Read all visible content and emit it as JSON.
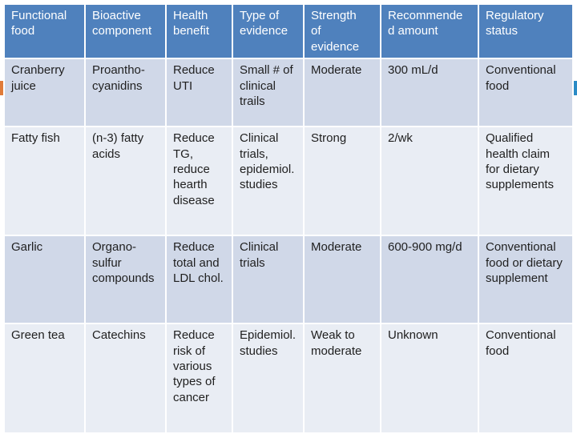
{
  "colors": {
    "header_bg": "#4f81bd",
    "row_odd_bg": "#d0d8e8",
    "row_even_bg": "#e9edf4",
    "left_accent": "#e07b39",
    "right_accent": "#2a8bc6"
  },
  "table": {
    "headers": [
      "Functional\nfood",
      "Bioactive\ncomponent",
      "Health\nbenefit",
      "Type of\nevidence",
      "Strength\nof\nevidence",
      "Recommende\nd amount",
      "Regulatory\nstatus"
    ],
    "rows": [
      [
        "Cranberry\njuice",
        "Proantho-\ncyanidins",
        "Reduce\nUTI",
        "Small # of\nclinical\ntrails",
        "Moderate",
        "300 mL/d",
        "Conventional\nfood"
      ],
      [
        "Fatty fish",
        "(n-3) fatty\nacids",
        "Reduce\nTG,\nreduce\nhearth\ndisease",
        "Clinical\ntrials,\nepidemiol.\nstudies",
        "Strong",
        "2/wk",
        "Qualified\nhealth claim\nfor dietary\nsupplements"
      ],
      [
        "Garlic",
        "Organo-\nsulfur\ncompounds",
        "Reduce\ntotal and\nLDL chol.",
        "Clinical\ntrials",
        "Moderate",
        "600-900 mg/d",
        "Conventional\nfood or dietary\nsupplement"
      ],
      [
        "Green tea",
        "Catechins",
        "Reduce\nrisk of\nvarious\ntypes of\ncancer",
        "Epidemiol.\nstudies",
        "Weak to\nmoderate",
        "Unknown",
        "Conventional\nfood"
      ]
    ]
  }
}
